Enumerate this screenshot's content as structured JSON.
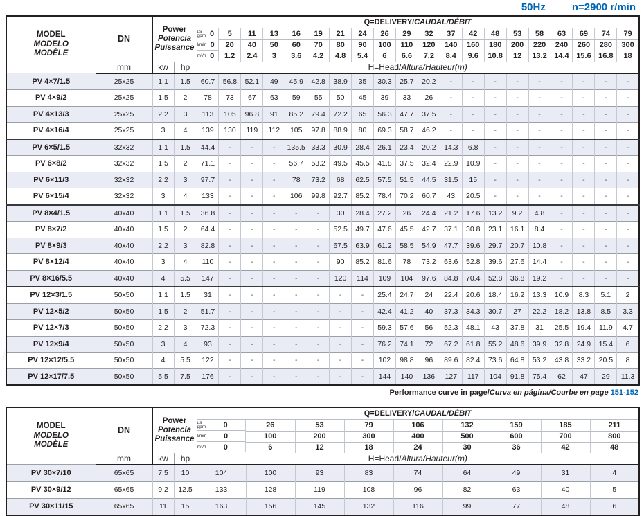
{
  "page": {
    "frequency": "50Hz",
    "speed": "n=2900 r/min",
    "colors": {
      "accent": "#0066b2",
      "stripe": "#e9ecf4"
    },
    "note": {
      "en": "Performance curve in page/",
      "es": "Curva en página/",
      "fr": "Courbe en page",
      "pages": "151-152"
    }
  },
  "table1": {
    "header": {
      "model": [
        "MODEL",
        "MODELO",
        "MODÈLE"
      ],
      "dn": "DN",
      "dn_unit": "mm",
      "power": [
        "Power",
        "Potencia",
        "Puissance"
      ],
      "power_units": [
        "kw",
        "hp"
      ],
      "q_en": "Q=DELIVERY/",
      "q_it": "CAUDAL/DÉBIT",
      "h_en": "H=Head/",
      "h_it": "Altura/Hauteur(m)"
    },
    "flow_header": [
      {
        "unit": "us\ngpm",
        "values": [
          "0",
          "5",
          "11",
          "13",
          "16",
          "19",
          "21",
          "24",
          "26",
          "29",
          "32",
          "37",
          "42",
          "48",
          "53",
          "58",
          "63",
          "69",
          "74",
          "79"
        ]
      },
      {
        "unit": "l/min",
        "values": [
          "0",
          "20",
          "40",
          "50",
          "60",
          "70",
          "80",
          "90",
          "100",
          "110",
          "120",
          "140",
          "160",
          "180",
          "200",
          "220",
          "240",
          "260",
          "280",
          "300"
        ]
      },
      {
        "unit": "m³/h",
        "values": [
          "0",
          "1.2",
          "2.4",
          "3",
          "3.6",
          "4.2",
          "4.8",
          "5.4",
          "6",
          "6.6",
          "7.2",
          "8.4",
          "9.6",
          "10.8",
          "12",
          "13.2",
          "14.4",
          "15.6",
          "16.8",
          "18"
        ]
      }
    ],
    "rows": [
      {
        "model": "PV 4×7/1.5",
        "dn": "25x25",
        "kw": "1.1",
        "hp": "1.5",
        "group": false,
        "heads": [
          "60.7",
          "56.8",
          "52.1",
          "49",
          "45.9",
          "42.8",
          "38.9",
          "35",
          "30.3",
          "25.7",
          "20.2",
          "-",
          "-",
          "-",
          "-",
          "-",
          "-",
          "-",
          "-",
          "-"
        ]
      },
      {
        "model": "PV 4×9/2",
        "dn": "25x25",
        "kw": "1.5",
        "hp": "2",
        "group": false,
        "heads": [
          "78",
          "73",
          "67",
          "63",
          "59",
          "55",
          "50",
          "45",
          "39",
          "33",
          "26",
          "-",
          "-",
          "-",
          "-",
          "-",
          "-",
          "-",
          "-",
          "-"
        ]
      },
      {
        "model": "PV 4×13/3",
        "dn": "25x25",
        "kw": "2.2",
        "hp": "3",
        "group": false,
        "heads": [
          "113",
          "105",
          "96.8",
          "91",
          "85.2",
          "79.4",
          "72.2",
          "65",
          "56.3",
          "47.7",
          "37.5",
          "-",
          "-",
          "-",
          "-",
          "-",
          "-",
          "-",
          "-",
          "-"
        ]
      },
      {
        "model": "PV 4×16/4",
        "dn": "25x25",
        "kw": "3",
        "hp": "4",
        "group": false,
        "heads": [
          "139",
          "130",
          "119",
          "112",
          "105",
          "97.8",
          "88.9",
          "80",
          "69.3",
          "58.7",
          "46.2",
          "-",
          "-",
          "-",
          "-",
          "-",
          "-",
          "-",
          "-",
          "-"
        ]
      },
      {
        "model": "PV 6×5/1.5",
        "dn": "32x32",
        "kw": "1.1",
        "hp": "1.5",
        "group": true,
        "heads": [
          "44.4",
          "-",
          "-",
          "-",
          "135.5",
          "33.3",
          "30.9",
          "28.4",
          "26.1",
          "23.4",
          "20.2",
          "14.3",
          "6.8",
          "-",
          "-",
          "-",
          "-",
          "-",
          "-",
          "-"
        ]
      },
      {
        "model": "PV 6×8/2",
        "dn": "32x32",
        "kw": "1.5",
        "hp": "2",
        "group": false,
        "heads": [
          "71.1",
          "-",
          "-",
          "-",
          "56.7",
          "53.2",
          "49.5",
          "45.5",
          "41.8",
          "37.5",
          "32.4",
          "22.9",
          "10.9",
          "-",
          "-",
          "-",
          "-",
          "-",
          "-",
          "-"
        ]
      },
      {
        "model": "PV 6×11/3",
        "dn": "32x32",
        "kw": "2.2",
        "hp": "3",
        "group": false,
        "heads": [
          "97.7",
          "-",
          "-",
          "-",
          "78",
          "73.2",
          "68",
          "62.5",
          "57.5",
          "51.5",
          "44.5",
          "31.5",
          "15",
          "-",
          "-",
          "-",
          "-",
          "-",
          "-",
          "-"
        ]
      },
      {
        "model": "PV 6×15/4",
        "dn": "32x32",
        "kw": "3",
        "hp": "4",
        "group": false,
        "heads": [
          "133",
          "-",
          "-",
          "-",
          "106",
          "99.8",
          "92.7",
          "85.2",
          "78.4",
          "70.2",
          "60.7",
          "43",
          "20.5",
          "-",
          "-",
          "-",
          "-",
          "-",
          "-",
          "-"
        ]
      },
      {
        "model": "PV 8×4/1.5",
        "dn": "40x40",
        "kw": "1.1",
        "hp": "1.5",
        "group": true,
        "heads": [
          "36.8",
          "-",
          "-",
          "-",
          "-",
          "-",
          "30",
          "28.4",
          "27.2",
          "26",
          "24.4",
          "21.2",
          "17.6",
          "13.2",
          "9.2",
          "4.8",
          "-",
          "-",
          "-",
          "-"
        ]
      },
      {
        "model": "PV 8×7/2",
        "dn": "40x40",
        "kw": "1.5",
        "hp": "2",
        "group": false,
        "heads": [
          "64.4",
          "-",
          "-",
          "-",
          "-",
          "-",
          "52.5",
          "49.7",
          "47.6",
          "45.5",
          "42.7",
          "37.1",
          "30.8",
          "23.1",
          "16.1",
          "8.4",
          "-",
          "-",
          "-",
          "-"
        ]
      },
      {
        "model": "PV 8×9/3",
        "dn": "40x40",
        "kw": "2.2",
        "hp": "3",
        "group": false,
        "heads": [
          "82.8",
          "-",
          "-",
          "-",
          "-",
          "-",
          "67.5",
          "63.9",
          "61.2",
          "58.5",
          "54.9",
          "47.7",
          "39.6",
          "29.7",
          "20.7",
          "10.8",
          "-",
          "-",
          "-",
          "-"
        ]
      },
      {
        "model": "PV 8×12/4",
        "dn": "40x40",
        "kw": "3",
        "hp": "4",
        "group": false,
        "heads": [
          "110",
          "-",
          "-",
          "-",
          "-",
          "-",
          "90",
          "85.2",
          "81.6",
          "78",
          "73.2",
          "63.6",
          "52.8",
          "39.6",
          "27.6",
          "14.4",
          "-",
          "-",
          "-",
          "-"
        ]
      },
      {
        "model": "PV 8×16/5.5",
        "dn": "40x40",
        "kw": "4",
        "hp": "5.5",
        "group": false,
        "heads": [
          "147",
          "-",
          "-",
          "-",
          "-",
          "-",
          "120",
          "114",
          "109",
          "104",
          "97.6",
          "84.8",
          "70.4",
          "52.8",
          "36.8",
          "19.2",
          "-",
          "-",
          "-",
          "-"
        ]
      },
      {
        "model": "PV 12×3/1.5",
        "dn": "50x50",
        "kw": "1.1",
        "hp": "1.5",
        "group": true,
        "heads": [
          "31",
          "-",
          "-",
          "-",
          "-",
          "-",
          "-",
          "-",
          "25.4",
          "24.7",
          "24",
          "22.4",
          "20.6",
          "18.4",
          "16.2",
          "13.3",
          "10.9",
          "8.3",
          "5.1",
          "2"
        ]
      },
      {
        "model": "PV 12×5/2",
        "dn": "50x50",
        "kw": "1.5",
        "hp": "2",
        "group": false,
        "heads": [
          "51.7",
          "-",
          "-",
          "-",
          "-",
          "-",
          "-",
          "-",
          "42.4",
          "41.2",
          "40",
          "37.3",
          "34.3",
          "30.7",
          "27",
          "22.2",
          "18.2",
          "13.8",
          "8.5",
          "3.3"
        ]
      },
      {
        "model": "PV 12×7/3",
        "dn": "50x50",
        "kw": "2.2",
        "hp": "3",
        "group": false,
        "heads": [
          "72.3",
          "-",
          "-",
          "-",
          "-",
          "-",
          "-",
          "-",
          "59.3",
          "57.6",
          "56",
          "52.3",
          "48.1",
          "43",
          "37.8",
          "31",
          "25.5",
          "19.4",
          "11.9",
          "4.7"
        ]
      },
      {
        "model": "PV 12×9/4",
        "dn": "50x50",
        "kw": "3",
        "hp": "4",
        "group": false,
        "heads": [
          "93",
          "-",
          "-",
          "-",
          "-",
          "-",
          "-",
          "-",
          "76.2",
          "74.1",
          "72",
          "67.2",
          "61.8",
          "55.2",
          "48.6",
          "39.9",
          "32.8",
          "24.9",
          "15.4",
          "6"
        ]
      },
      {
        "model": "PV 12×12/5.5",
        "dn": "50x50",
        "kw": "4",
        "hp": "5.5",
        "group": false,
        "heads": [
          "122",
          "-",
          "-",
          "-",
          "-",
          "-",
          "-",
          "-",
          "102",
          "98.8",
          "96",
          "89.6",
          "82.4",
          "73.6",
          "64.8",
          "53.2",
          "43.8",
          "33.2",
          "20.5",
          "8"
        ]
      },
      {
        "model": "PV 12×17/7.5",
        "dn": "50x50",
        "kw": "5.5",
        "hp": "7.5",
        "group": false,
        "heads": [
          "176",
          "-",
          "-",
          "-",
          "-",
          "-",
          "-",
          "-",
          "144",
          "140",
          "136",
          "127",
          "117",
          "104",
          "91.8",
          "75.4",
          "62",
          "47",
          "29",
          "11.3"
        ]
      }
    ]
  },
  "table2": {
    "header": {
      "model": [
        "MODEL",
        "MODELO",
        "MODÈLE"
      ],
      "dn": "DN",
      "dn_unit": "mm",
      "power": [
        "Power",
        "Potencia",
        "Puissance"
      ],
      "power_units": [
        "kw",
        "hp"
      ],
      "q_en": "Q=DELIVERY/",
      "q_it": "CAUDAL/DÉBIT",
      "h_en": "H=Head/",
      "h_it": "Altura/Hauteur(m)"
    },
    "flow_header": [
      {
        "unit": "us\ngpm",
        "values": [
          "0",
          "26",
          "53",
          "79",
          "106",
          "132",
          "159",
          "185",
          "211"
        ]
      },
      {
        "unit": "l/min",
        "values": [
          "0",
          "100",
          "200",
          "300",
          "400",
          "500",
          "600",
          "700",
          "800"
        ]
      },
      {
        "unit": "m³/h",
        "values": [
          "0",
          "6",
          "12",
          "18",
          "24",
          "30",
          "36",
          "42",
          "48"
        ]
      }
    ],
    "rows": [
      {
        "model": "PV 30×7/10",
        "dn": "65x65",
        "kw": "7.5",
        "hp": "10",
        "group": false,
        "heads": [
          "104",
          "100",
          "93",
          "83",
          "74",
          "64",
          "49",
          "31",
          "4"
        ]
      },
      {
        "model": "PV 30×9/12",
        "dn": "65x65",
        "kw": "9.2",
        "hp": "12.5",
        "group": false,
        "heads": [
          "133",
          "128",
          "119",
          "108",
          "96",
          "82",
          "63",
          "40",
          "5"
        ]
      },
      {
        "model": "PV 30×11/15",
        "dn": "65x65",
        "kw": "11",
        "hp": "15",
        "group": false,
        "heads": [
          "163",
          "156",
          "145",
          "132",
          "116",
          "99",
          "77",
          "48",
          "6"
        ]
      }
    ]
  }
}
